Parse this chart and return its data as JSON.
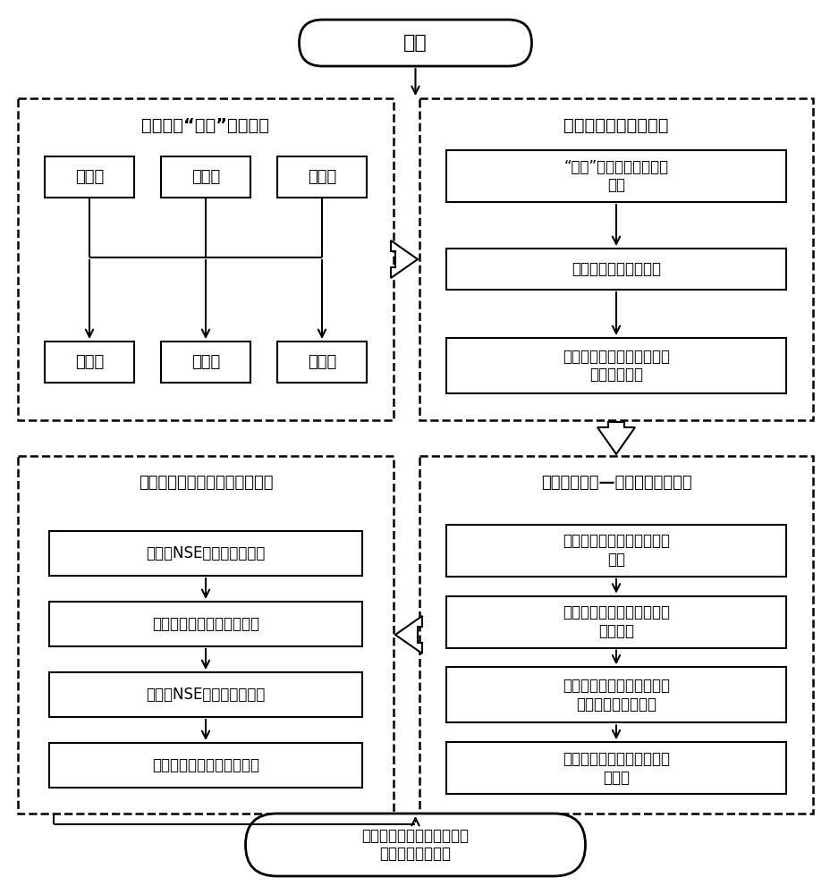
{
  "start_label": "开始",
  "end_label": "输出流域蓄水容量对长期气\n象干旱的响应结果",
  "module1_title": "水文资料“三性”审查模块",
  "module1_boxes_top": [
    "日降雨",
    "日蒸发",
    "日径流"
  ],
  "module1_boxes_bot": [
    "可靠性",
    "一致性",
    "代表性"
  ],
  "module2_title": "长期气象干旱识别模块",
  "module2_boxes": [
    "“三性”审查后的历史降雨\n序列",
    "识别气象干旱起始时间",
    "识别气象干旱结束时间及干\n旱期变异幅度"
  ],
  "module3_title": "流域蓄水容量响应结果评估模块",
  "module3_boxes": [
    "两阶段NSE结果符合性评估",
    "两阶段参数变化显著性评估",
    "两阶段NSE结果差异性评估",
    "两阶段模拟结果稳健性评估"
  ],
  "module4_title": "流域蓄水容量—干旱响应模拟模块",
  "module4_boxes": [
    "建立日尺度水文模型和目标\n函数",
    "构建流域蓄水容量变化特征\n描述框架",
    "基于最优概率组合的流域蓄\n水容量变点分析方法",
    "优选流域蓄水容量最佳时变\n点位置"
  ]
}
